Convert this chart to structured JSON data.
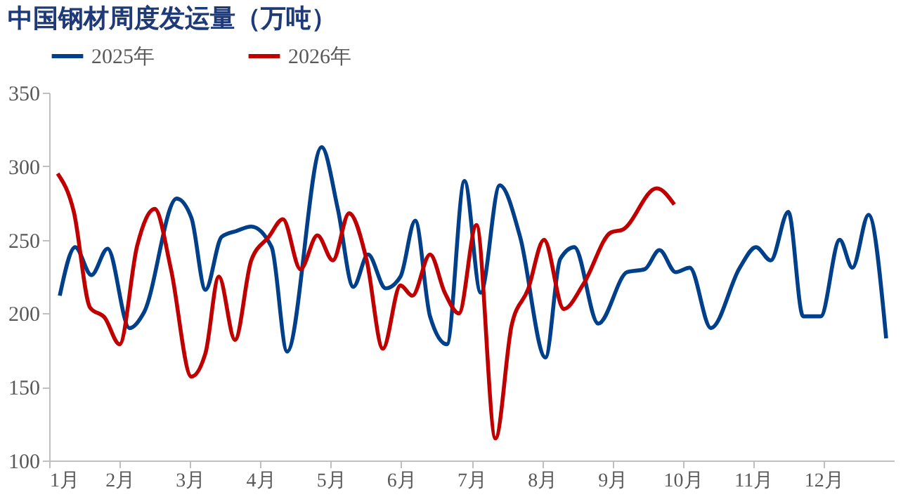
{
  "chart_data": {
    "type": "line",
    "title": "中国钢材周度发运量（万吨）",
    "legend": "top",
    "grid": false,
    "marker": "none",
    "line_style": "solid",
    "xlim": [
      1,
      13
    ],
    "ylim": [
      100,
      350
    ],
    "yticks": [
      100,
      150,
      200,
      250,
      300,
      350
    ],
    "xticks": [
      {
        "value": 1,
        "label": "1月"
      },
      {
        "value": 2,
        "label": "2月"
      },
      {
        "value": 3,
        "label": "3月"
      },
      {
        "value": 4,
        "label": "4月"
      },
      {
        "value": 5,
        "label": "5月"
      },
      {
        "value": 6,
        "label": "6月"
      },
      {
        "value": 7,
        "label": "7月"
      },
      {
        "value": 8,
        "label": "8月"
      },
      {
        "value": 9,
        "label": "9月"
      },
      {
        "value": 10,
        "label": "10月"
      },
      {
        "value": 11,
        "label": "11月"
      },
      {
        "value": 12,
        "label": "12月"
      }
    ],
    "series": [
      {
        "name": "2025年",
        "color": "#003f8a",
        "x": [
          1.15,
          1.37,
          1.6,
          1.83,
          2.14,
          2.35,
          2.81,
          3.02,
          3.22,
          3.45,
          3.66,
          3.87,
          4.16,
          4.38,
          4.87,
          5.1,
          5.32,
          5.53,
          5.78,
          5.99,
          6.2,
          6.41,
          6.65,
          6.9,
          7.13,
          7.4,
          7.69,
          8.05,
          8.26,
          8.46,
          8.8,
          9.21,
          9.46,
          9.67,
          9.9,
          10.1,
          10.4,
          10.81,
          11.04,
          11.25,
          11.5,
          11.71,
          11.96,
          12.23,
          12.41,
          12.64,
          12.89
        ],
        "values": [
          212,
          245,
          226,
          244,
          190,
          201,
          278,
          265,
          216,
          252,
          256,
          259,
          245,
          174,
          313,
          271,
          218,
          240,
          217,
          225,
          263,
          198,
          179,
          290,
          214,
          287,
          252,
          170,
          237,
          245,
          193,
          228,
          230,
          243,
          228,
          231,
          190,
          231,
          245,
          236,
          269,
          198,
          198,
          250,
          231,
          267,
          183
        ]
      },
      {
        "name": "2026年",
        "color": "#c00000",
        "x": [
          1.12,
          1.35,
          1.58,
          1.79,
          2.0,
          2.25,
          2.5,
          2.73,
          3.02,
          3.22,
          3.41,
          3.64,
          3.87,
          4.12,
          4.32,
          4.57,
          4.81,
          5.03,
          5.26,
          5.51,
          5.74,
          5.99,
          6.16,
          6.41,
          6.62,
          6.82,
          7.07,
          7.34,
          7.57,
          7.8,
          8.03,
          8.31,
          8.59,
          8.98,
          9.15,
          9.63,
          9.88
        ],
        "values": [
          295,
          269,
          204,
          197,
          179,
          246,
          271,
          230,
          157,
          173,
          225,
          182,
          236,
          252,
          264,
          230,
          253,
          236,
          268,
          236,
          176,
          219,
          212,
          240,
          214,
          200,
          260,
          115,
          192,
          216,
          250,
          203,
          220,
          255,
          257,
          285,
          274
        ]
      }
    ]
  }
}
